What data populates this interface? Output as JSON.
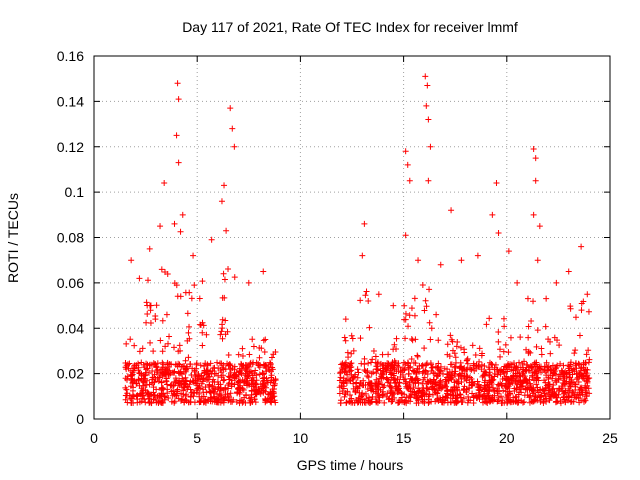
{
  "chart_data": {
    "type": "scatter",
    "title": "Day 117 of 2021, Rate Of TEC Index for receiver lmmf",
    "xlabel": "GPS time / hours",
    "ylabel": "ROTI / TECUs",
    "xlim": [
      0,
      25
    ],
    "ylim": [
      0,
      0.16
    ],
    "xticks": [
      0,
      5,
      10,
      15,
      20,
      25
    ],
    "xtick_labels": [
      "0",
      "5",
      "10",
      "15",
      "20",
      "25"
    ],
    "yticks": [
      0,
      0.02,
      0.04,
      0.06,
      0.08,
      0.1,
      0.12,
      0.14,
      0.16
    ],
    "ytick_labels": [
      "0",
      "0.02",
      "0.04",
      "0.06",
      "0.08",
      "0.1",
      "0.12",
      "0.14",
      "0.16"
    ],
    "grid": true,
    "marker": "+",
    "color": "#ff0000",
    "data_segments": [
      {
        "x_start": 1.5,
        "x_end": 8.8
      },
      {
        "x_start": 11.9,
        "x_end": 24.0
      }
    ],
    "baseline_range": [
      0.007,
      0.025
    ],
    "series": [
      {
        "name": "ROTI",
        "peaks": [
          {
            "x": 1.8,
            "y": 0.07
          },
          {
            "x": 2.2,
            "y": 0.062
          },
          {
            "x": 2.7,
            "y": 0.075
          },
          {
            "x": 3.4,
            "y": 0.104
          },
          {
            "x": 3.2,
            "y": 0.085
          },
          {
            "x": 3.9,
            "y": 0.086
          },
          {
            "x": 4.05,
            "y": 0.148
          },
          {
            "x": 4.1,
            "y": 0.141
          },
          {
            "x": 4.0,
            "y": 0.125
          },
          {
            "x": 4.1,
            "y": 0.113
          },
          {
            "x": 4.3,
            "y": 0.09
          },
          {
            "x": 4.8,
            "y": 0.072
          },
          {
            "x": 5.7,
            "y": 0.079
          },
          {
            "x": 6.3,
            "y": 0.103
          },
          {
            "x": 6.2,
            "y": 0.096
          },
          {
            "x": 6.6,
            "y": 0.137
          },
          {
            "x": 6.7,
            "y": 0.128
          },
          {
            "x": 6.8,
            "y": 0.12
          },
          {
            "x": 6.4,
            "y": 0.083
          },
          {
            "x": 7.5,
            "y": 0.06
          },
          {
            "x": 8.2,
            "y": 0.065
          },
          {
            "x": 12.2,
            "y": 0.044
          },
          {
            "x": 13.1,
            "y": 0.086
          },
          {
            "x": 13.0,
            "y": 0.072
          },
          {
            "x": 13.8,
            "y": 0.055
          },
          {
            "x": 14.5,
            "y": 0.05
          },
          {
            "x": 15.1,
            "y": 0.118
          },
          {
            "x": 15.2,
            "y": 0.112
          },
          {
            "x": 15.3,
            "y": 0.105
          },
          {
            "x": 15.1,
            "y": 0.081
          },
          {
            "x": 15.7,
            "y": 0.07
          },
          {
            "x": 16.05,
            "y": 0.151
          },
          {
            "x": 16.15,
            "y": 0.147
          },
          {
            "x": 16.1,
            "y": 0.138
          },
          {
            "x": 16.2,
            "y": 0.132
          },
          {
            "x": 16.3,
            "y": 0.12
          },
          {
            "x": 16.2,
            "y": 0.105
          },
          {
            "x": 16.8,
            "y": 0.068
          },
          {
            "x": 17.3,
            "y": 0.092
          },
          {
            "x": 17.8,
            "y": 0.07
          },
          {
            "x": 18.6,
            "y": 0.072
          },
          {
            "x": 19.5,
            "y": 0.104
          },
          {
            "x": 19.3,
            "y": 0.09
          },
          {
            "x": 19.6,
            "y": 0.082
          },
          {
            "x": 20.1,
            "y": 0.074
          },
          {
            "x": 20.5,
            "y": 0.06
          },
          {
            "x": 21.3,
            "y": 0.119
          },
          {
            "x": 21.4,
            "y": 0.115
          },
          {
            "x": 21.4,
            "y": 0.105
          },
          {
            "x": 21.3,
            "y": 0.09
          },
          {
            "x": 21.6,
            "y": 0.085
          },
          {
            "x": 21.5,
            "y": 0.07
          },
          {
            "x": 22.4,
            "y": 0.06
          },
          {
            "x": 23.0,
            "y": 0.065
          },
          {
            "x": 23.6,
            "y": 0.076
          },
          {
            "x": 23.9,
            "y": 0.055
          }
        ]
      }
    ]
  }
}
